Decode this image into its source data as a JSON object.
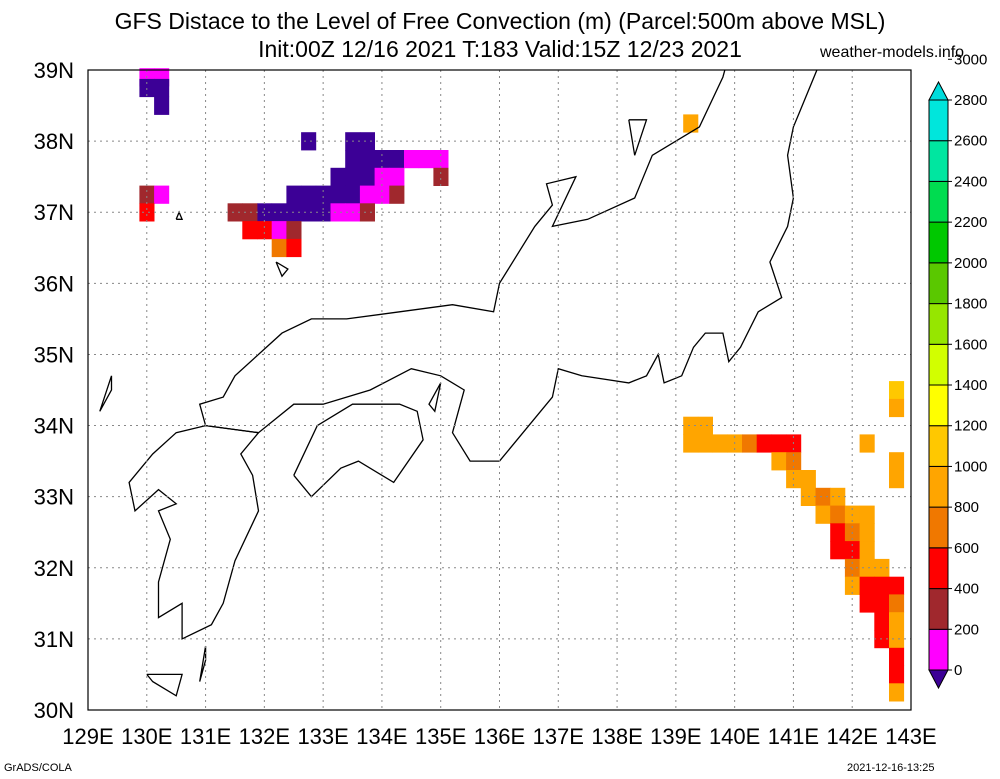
{
  "title": {
    "line1": "GFS Distace to the Level of Free Convection (m) (Parcel:500m above MSL)",
    "line2": "Init:00Z 12/16 2021 T:183 Valid:15Z 12/23 2021",
    "site": "weather-models.info"
  },
  "footer": {
    "credit": "GrADS/COLA",
    "timestamp": "2021-12-16-13:25"
  },
  "map": {
    "lon_labels": [
      "129E",
      "130E",
      "131E",
      "132E",
      "133E",
      "134E",
      "135E",
      "136E",
      "137E",
      "138E",
      "139E",
      "140E",
      "141E",
      "142E",
      "143E"
    ],
    "lat_labels": [
      "39N",
      "38N",
      "37N",
      "36N",
      "35N",
      "34N",
      "33N",
      "32N",
      "31N",
      "30N"
    ],
    "lon_range": [
      129,
      143
    ],
    "lat_range": [
      30,
      39
    ],
    "grid": "dotted"
  },
  "colorbar": {
    "labels": [
      "0",
      "200",
      "400",
      "600",
      "800",
      "1000",
      "1200",
      "1400",
      "1600",
      "1800",
      "2000",
      "2200",
      "2400",
      "2600",
      "2800",
      "3000"
    ],
    "colors": [
      "#3c0096",
      "#ff00ff",
      "#a0282d",
      "#ff0000",
      "#f07800",
      "#ffa500",
      "#ffc800",
      "#ffff00",
      "#d2ff00",
      "#96e600",
      "#5ac800",
      "#00c800",
      "#00dc50",
      "#00e6a0",
      "#00e6dc",
      "#00dcdc"
    ]
  },
  "field_cells": [
    {
      "lon": 130.0,
      "lat": 38.9,
      "v": 1
    },
    {
      "lon": 130.25,
      "lat": 38.9,
      "v": 1
    },
    {
      "lon": 130.0,
      "lat": 38.75,
      "v": 0
    },
    {
      "lon": 130.25,
      "lat": 38.75,
      "v": 0
    },
    {
      "lon": 130.25,
      "lat": 38.5,
      "v": 0
    },
    {
      "lon": 132.75,
      "lat": 38.0,
      "v": 0
    },
    {
      "lon": 133.5,
      "lat": 38.0,
      "v": 0
    },
    {
      "lon": 133.75,
      "lat": 38.0,
      "v": 0
    },
    {
      "lon": 133.5,
      "lat": 37.75,
      "v": 0
    },
    {
      "lon": 133.75,
      "lat": 37.75,
      "v": 0
    },
    {
      "lon": 134.0,
      "lat": 37.75,
      "v": 0
    },
    {
      "lon": 134.25,
      "lat": 37.75,
      "v": 0
    },
    {
      "lon": 134.5,
      "lat": 37.75,
      "v": 1
    },
    {
      "lon": 134.75,
      "lat": 37.75,
      "v": 1
    },
    {
      "lon": 135.0,
      "lat": 37.75,
      "v": 1
    },
    {
      "lon": 133.25,
      "lat": 37.5,
      "v": 0
    },
    {
      "lon": 133.5,
      "lat": 37.5,
      "v": 0
    },
    {
      "lon": 133.75,
      "lat": 37.5,
      "v": 0
    },
    {
      "lon": 134.0,
      "lat": 37.5,
      "v": 1
    },
    {
      "lon": 134.25,
      "lat": 37.5,
      "v": 1
    },
    {
      "lon": 135.0,
      "lat": 37.5,
      "v": 2
    },
    {
      "lon": 132.5,
      "lat": 37.25,
      "v": 0
    },
    {
      "lon": 132.75,
      "lat": 37.25,
      "v": 0
    },
    {
      "lon": 133.0,
      "lat": 37.25,
      "v": 0
    },
    {
      "lon": 133.25,
      "lat": 37.25,
      "v": 0
    },
    {
      "lon": 133.5,
      "lat": 37.25,
      "v": 0
    },
    {
      "lon": 133.75,
      "lat": 37.25,
      "v": 1
    },
    {
      "lon": 134.0,
      "lat": 37.25,
      "v": 1
    },
    {
      "lon": 134.25,
      "lat": 37.25,
      "v": 2
    },
    {
      "lon": 130.0,
      "lat": 37.25,
      "v": 2
    },
    {
      "lon": 130.25,
      "lat": 37.25,
      "v": 1
    },
    {
      "lon": 130.0,
      "lat": 37.0,
      "v": 3
    },
    {
      "lon": 132.0,
      "lat": 37.0,
      "v": 0
    },
    {
      "lon": 132.25,
      "lat": 37.0,
      "v": 0
    },
    {
      "lon": 132.5,
      "lat": 37.0,
      "v": 0
    },
    {
      "lon": 132.75,
      "lat": 37.0,
      "v": 0
    },
    {
      "lon": 133.0,
      "lat": 37.0,
      "v": 0
    },
    {
      "lon": 133.25,
      "lat": 37.0,
      "v": 1
    },
    {
      "lon": 133.5,
      "lat": 37.0,
      "v": 1
    },
    {
      "lon": 133.75,
      "lat": 37.0,
      "v": 2
    },
    {
      "lon": 131.5,
      "lat": 37.0,
      "v": 2
    },
    {
      "lon": 131.75,
      "lat": 37.0,
      "v": 2
    },
    {
      "lon": 131.75,
      "lat": 36.75,
      "v": 3
    },
    {
      "lon": 132.0,
      "lat": 36.75,
      "v": 3
    },
    {
      "lon": 132.25,
      "lat": 36.75,
      "v": 1
    },
    {
      "lon": 132.5,
      "lat": 36.75,
      "v": 2
    },
    {
      "lon": 132.25,
      "lat": 36.5,
      "v": 4
    },
    {
      "lon": 132.5,
      "lat": 36.5,
      "v": 3
    },
    {
      "lon": 139.25,
      "lat": 38.25,
      "v": 5
    },
    {
      "lon": 142.75,
      "lat": 34.5,
      "v": 6
    },
    {
      "lon": 142.75,
      "lat": 34.25,
      "v": 5
    },
    {
      "lon": 139.25,
      "lat": 34.0,
      "v": 5
    },
    {
      "lon": 139.5,
      "lat": 34.0,
      "v": 5
    },
    {
      "lon": 139.75,
      "lat": 33.75,
      "v": 5
    },
    {
      "lon": 140.0,
      "lat": 33.75,
      "v": 5
    },
    {
      "lon": 140.25,
      "lat": 33.75,
      "v": 4
    },
    {
      "lon": 140.5,
      "lat": 33.75,
      "v": 3
    },
    {
      "lon": 140.75,
      "lat": 33.75,
      "v": 3
    },
    {
      "lon": 141.0,
      "lat": 33.75,
      "v": 3
    },
    {
      "lon": 139.25,
      "lat": 33.75,
      "v": 5
    },
    {
      "lon": 139.5,
      "lat": 33.75,
      "v": 5
    },
    {
      "lon": 142.25,
      "lat": 33.75,
      "v": 5
    },
    {
      "lon": 140.75,
      "lat": 33.5,
      "v": 5
    },
    {
      "lon": 141.0,
      "lat": 33.5,
      "v": 4
    },
    {
      "lon": 142.75,
      "lat": 33.5,
      "v": 5
    },
    {
      "lon": 142.75,
      "lat": 33.25,
      "v": 5
    },
    {
      "lon": 141.0,
      "lat": 33.25,
      "v": 5
    },
    {
      "lon": 141.25,
      "lat": 33.25,
      "v": 5
    },
    {
      "lon": 141.25,
      "lat": 33.0,
      "v": 5
    },
    {
      "lon": 141.5,
      "lat": 33.0,
      "v": 4
    },
    {
      "lon": 141.75,
      "lat": 33.0,
      "v": 5
    },
    {
      "lon": 141.5,
      "lat": 32.75,
      "v": 5
    },
    {
      "lon": 141.75,
      "lat": 32.75,
      "v": 4
    },
    {
      "lon": 142.0,
      "lat": 32.75,
      "v": 5
    },
    {
      "lon": 142.25,
      "lat": 32.75,
      "v": 5
    },
    {
      "lon": 141.75,
      "lat": 32.5,
      "v": 3
    },
    {
      "lon": 142.0,
      "lat": 32.5,
      "v": 4
    },
    {
      "lon": 142.25,
      "lat": 32.5,
      "v": 5
    },
    {
      "lon": 141.75,
      "lat": 32.25,
      "v": 3
    },
    {
      "lon": 142.0,
      "lat": 32.25,
      "v": 3
    },
    {
      "lon": 142.25,
      "lat": 32.25,
      "v": 5
    },
    {
      "lon": 142.0,
      "lat": 32.0,
      "v": 4
    },
    {
      "lon": 142.25,
      "lat": 32.0,
      "v": 5
    },
    {
      "lon": 142.5,
      "lat": 32.0,
      "v": 5
    },
    {
      "lon": 142.0,
      "lat": 31.75,
      "v": 5
    },
    {
      "lon": 142.25,
      "lat": 31.75,
      "v": 3
    },
    {
      "lon": 142.5,
      "lat": 31.75,
      "v": 3
    },
    {
      "lon": 142.75,
      "lat": 31.75,
      "v": 3
    },
    {
      "lon": 142.25,
      "lat": 31.5,
      "v": 3
    },
    {
      "lon": 142.5,
      "lat": 31.5,
      "v": 3
    },
    {
      "lon": 142.75,
      "lat": 31.5,
      "v": 4
    },
    {
      "lon": 142.5,
      "lat": 31.25,
      "v": 3
    },
    {
      "lon": 142.75,
      "lat": 31.25,
      "v": 5
    },
    {
      "lon": 142.5,
      "lat": 31.0,
      "v": 3
    },
    {
      "lon": 142.75,
      "lat": 31.0,
      "v": 5
    },
    {
      "lon": 142.75,
      "lat": 30.75,
      "v": 3
    },
    {
      "lon": 142.75,
      "lat": 30.5,
      "v": 3
    },
    {
      "lon": 142.75,
      "lat": 30.25,
      "v": 5
    }
  ],
  "coastlines": [
    [
      [
        141.7,
        40.1
      ],
      [
        141.4,
        39.0
      ],
      [
        141.1,
        38.4
      ],
      [
        141.0,
        38.2
      ],
      [
        140.9,
        37.8
      ],
      [
        141.0,
        37.2
      ],
      [
        140.9,
        36.8
      ],
      [
        140.6,
        36.3
      ],
      [
        140.8,
        35.8
      ],
      [
        140.4,
        35.6
      ],
      [
        140.1,
        35.1
      ],
      [
        139.9,
        34.9
      ],
      [
        139.8,
        35.3
      ],
      [
        139.5,
        35.3
      ],
      [
        139.3,
        35.1
      ],
      [
        139.1,
        34.7
      ],
      [
        138.8,
        34.6
      ],
      [
        138.7,
        35.0
      ],
      [
        138.5,
        34.7
      ],
      [
        138.2,
        34.6
      ],
      [
        137.4,
        34.7
      ],
      [
        137.0,
        34.8
      ],
      [
        136.9,
        34.4
      ],
      [
        136.8,
        34.3
      ],
      [
        136.0,
        33.5
      ],
      [
        135.5,
        33.5
      ],
      [
        135.2,
        33.9
      ],
      [
        135.4,
        34.5
      ],
      [
        135.0,
        34.7
      ],
      [
        134.5,
        34.8
      ],
      [
        133.8,
        34.5
      ],
      [
        133.0,
        34.3
      ],
      [
        132.5,
        34.3
      ],
      [
        131.9,
        33.9
      ],
      [
        131.0,
        34.0
      ],
      [
        130.9,
        34.3
      ],
      [
        131.3,
        34.4
      ],
      [
        131.5,
        34.7
      ],
      [
        132.3,
        35.3
      ],
      [
        132.8,
        35.5
      ],
      [
        133.4,
        35.5
      ],
      [
        134.3,
        35.6
      ],
      [
        135.2,
        35.7
      ],
      [
        135.9,
        35.6
      ],
      [
        136.0,
        36.0
      ],
      [
        136.6,
        36.8
      ],
      [
        136.9,
        37.1
      ],
      [
        136.8,
        37.4
      ],
      [
        137.3,
        37.5
      ],
      [
        136.9,
        36.8
      ],
      [
        137.5,
        36.9
      ],
      [
        138.3,
        37.2
      ],
      [
        138.6,
        37.8
      ],
      [
        139.4,
        38.2
      ],
      [
        139.8,
        38.9
      ],
      [
        140.0,
        39.5
      ],
      [
        140.0,
        40.1
      ]
    ],
    [
      [
        131.9,
        33.9
      ],
      [
        131.6,
        33.6
      ],
      [
        131.8,
        33.3
      ],
      [
        131.9,
        32.8
      ],
      [
        131.5,
        32.1
      ],
      [
        131.3,
        31.5
      ],
      [
        131.1,
        31.2
      ],
      [
        130.6,
        31.0
      ],
      [
        130.6,
        31.5
      ],
      [
        130.2,
        31.3
      ],
      [
        130.2,
        31.8
      ],
      [
        130.4,
        32.4
      ],
      [
        130.2,
        32.8
      ],
      [
        130.5,
        32.9
      ],
      [
        130.2,
        33.1
      ],
      [
        129.8,
        32.8
      ],
      [
        129.7,
        33.2
      ],
      [
        130.1,
        33.6
      ],
      [
        130.5,
        33.9
      ],
      [
        131.0,
        34.0
      ],
      [
        131.9,
        33.9
      ]
    ],
    [
      [
        132.5,
        33.3
      ],
      [
        132.8,
        33.0
      ],
      [
        133.3,
        33.4
      ],
      [
        133.6,
        33.5
      ],
      [
        134.2,
        33.2
      ],
      [
        134.7,
        33.8
      ],
      [
        134.6,
        34.2
      ],
      [
        134.3,
        34.3
      ],
      [
        133.5,
        34.3
      ],
      [
        132.9,
        34.0
      ],
      [
        132.5,
        33.3
      ]
    ],
    [
      [
        135.0,
        34.6
      ],
      [
        134.8,
        34.3
      ],
      [
        134.9,
        34.2
      ],
      [
        135.0,
        34.6
      ]
    ],
    [
      [
        138.2,
        38.3
      ],
      [
        138.5,
        38.3
      ],
      [
        138.3,
        37.8
      ],
      [
        138.2,
        38.3
      ]
    ],
    [
      [
        129.4,
        34.7
      ],
      [
        129.2,
        34.2
      ],
      [
        129.4,
        34.5
      ],
      [
        129.4,
        34.7
      ]
    ],
    [
      [
        130.0,
        30.5
      ],
      [
        130.6,
        30.5
      ],
      [
        130.5,
        30.2
      ],
      [
        130.1,
        30.4
      ],
      [
        130.0,
        30.5
      ]
    ],
    [
      [
        131.0,
        30.9
      ],
      [
        130.9,
        30.4
      ],
      [
        131.0,
        30.7
      ],
      [
        131.0,
        30.9
      ]
    ],
    [
      [
        132.2,
        36.3
      ],
      [
        132.4,
        36.2
      ],
      [
        132.3,
        36.1
      ],
      [
        132.2,
        36.3
      ]
    ],
    [
      [
        130.5,
        36.9
      ],
      [
        130.6,
        36.9
      ],
      [
        130.55,
        37.0
      ],
      [
        130.5,
        36.9
      ]
    ]
  ]
}
